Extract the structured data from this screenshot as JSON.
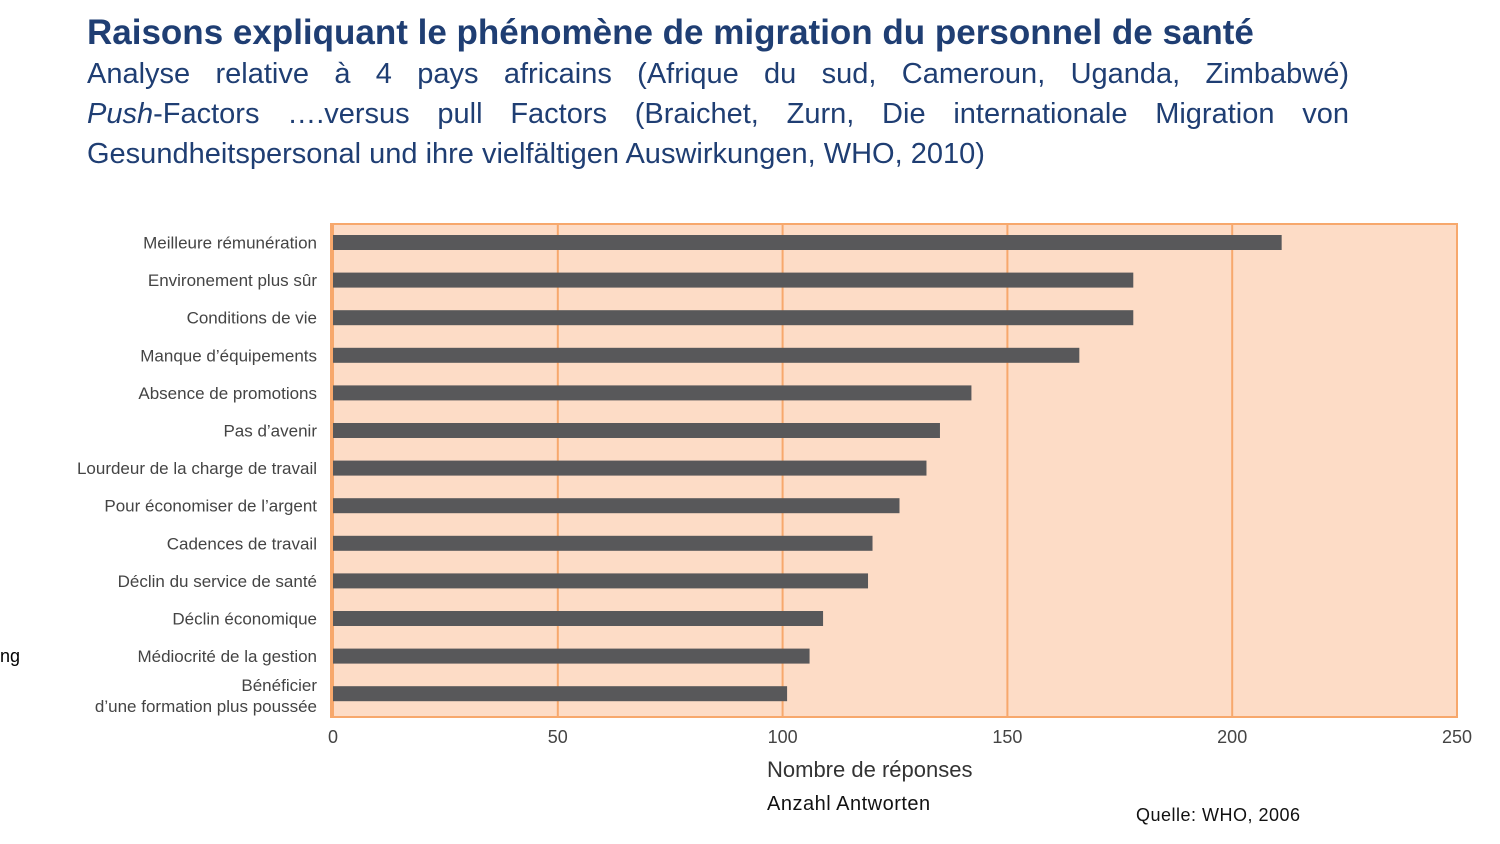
{
  "header": {
    "title": "Raisons expliquant le phénomène de migration du personnel de santé",
    "line1": "Analyse relative à 4 pays africains (Afrique du sud, Cameroun, Uganda, Zimbabwé)",
    "line2_italic": "Push",
    "line2_rest": "-Factors ….versus pull Factors (Braichet, Zurn, Die internationale Migration von",
    "line3": "Gesundheitspersonal und ihre vielfältigen Auswirkungen, WHO, 2010)"
  },
  "stray_text": "ng",
  "xlabel_fr": "Nombre de réponses",
  "xlabel_de": "Anzahl Antworten",
  "source": "Quelle: WHO, 2006",
  "colors": {
    "title": "#1f3e73",
    "bar": "#58585a",
    "plot_bg": "#fddcc6",
    "grid": "#f7a86c"
  },
  "chart_data": {
    "type": "bar",
    "orientation": "horizontal",
    "categories": [
      "Meilleure rémunération",
      "Environement plus sûr",
      "Conditions de vie",
      "Manque d’équipements",
      "Absence de promotions",
      "Pas d’avenir",
      "Lourdeur de la charge de travail",
      "Pour économiser de l’argent",
      "Cadences de travail",
      "Déclin du service de santé",
      "Déclin économique",
      "Médiocrité de la gestion",
      [
        "Bénéficier",
        "d’une formation plus poussée"
      ]
    ],
    "values": [
      211,
      178,
      178,
      166,
      142,
      135,
      132,
      126,
      120,
      119,
      109,
      106,
      101
    ],
    "xlim": [
      0,
      250
    ],
    "xticks": [
      0,
      50,
      100,
      150,
      200,
      250
    ],
    "xlabel": "Nombre de réponses",
    "grid": true
  }
}
